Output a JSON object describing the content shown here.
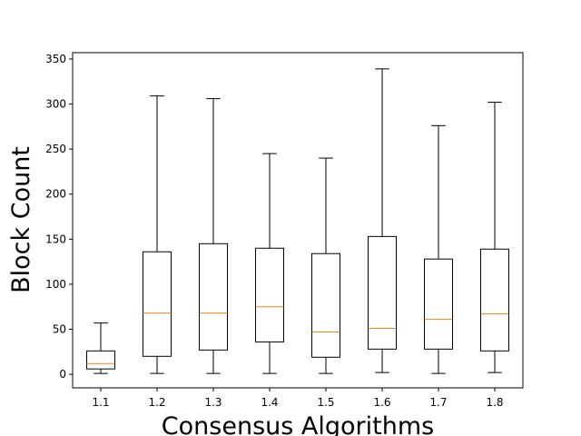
{
  "chart_data": {
    "type": "box",
    "title": "",
    "xlabel": "Consensus Algorithms",
    "ylabel": "Block Count",
    "categories": [
      "1.1",
      "1.2",
      "1.3",
      "1.4",
      "1.5",
      "1.6",
      "1.7",
      "1.8"
    ],
    "ylim": [
      -15,
      357
    ],
    "yticks": [
      0,
      50,
      100,
      150,
      200,
      250,
      300,
      350
    ],
    "grid": false,
    "boxes": [
      {
        "category": "1.1",
        "whisker_low": 1,
        "q1": 6,
        "median": 12,
        "q3": 26,
        "whisker_high": 57
      },
      {
        "category": "1.2",
        "whisker_low": 1,
        "q1": 20,
        "median": 68,
        "q3": 136,
        "whisker_high": 309
      },
      {
        "category": "1.3",
        "whisker_low": 1,
        "q1": 27,
        "median": 68,
        "q3": 145,
        "whisker_high": 306
      },
      {
        "category": "1.4",
        "whisker_low": 1,
        "q1": 36,
        "median": 75,
        "q3": 140,
        "whisker_high": 245
      },
      {
        "category": "1.5",
        "whisker_low": 1,
        "q1": 19,
        "median": 47,
        "q3": 134,
        "whisker_high": 240
      },
      {
        "category": "1.6",
        "whisker_low": 2,
        "q1": 28,
        "median": 51,
        "q3": 153,
        "whisker_high": 339
      },
      {
        "category": "1.7",
        "whisker_low": 1,
        "q1": 28,
        "median": 61,
        "q3": 128,
        "whisker_high": 276
      },
      {
        "category": "1.8",
        "whisker_low": 2,
        "q1": 26,
        "median": 67,
        "q3": 139,
        "whisker_high": 302
      }
    ],
    "colors": {
      "box": "#000000",
      "median": "#ff7f0e",
      "axes": "#000000"
    }
  }
}
